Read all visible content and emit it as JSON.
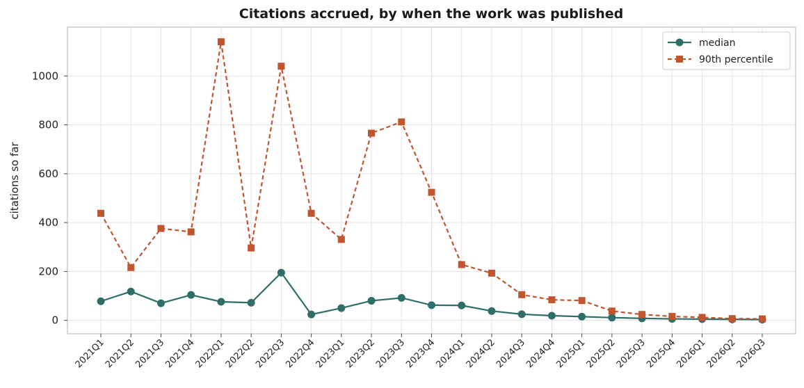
{
  "chart_data": {
    "type": "line",
    "title": "Citations accrued, by when the work was published",
    "xlabel": "",
    "ylabel": "citations so far",
    "categories": [
      "2021Q1",
      "2021Q2",
      "2021Q3",
      "2021Q4",
      "2022Q1",
      "2022Q2",
      "2022Q3",
      "2022Q4",
      "2023Q1",
      "2023Q2",
      "2023Q3",
      "2023Q4",
      "2024Q1",
      "2024Q2",
      "2024Q3",
      "2024Q4",
      "2025Q1",
      "2025Q2",
      "2025Q3",
      "2025Q4",
      "2026Q1",
      "2026Q2",
      "2026Q3"
    ],
    "series": [
      {
        "name": "median",
        "color": "#2e6e68",
        "marker": "circle",
        "linestyle": "solid",
        "values": [
          78,
          118,
          70,
          104,
          76,
          72,
          195,
          24,
          50,
          80,
          92,
          62,
          61,
          38,
          25,
          19,
          15,
          11,
          8,
          6,
          5,
          4,
          3
        ]
      },
      {
        "name": "90th percentile",
        "color": "#c0552f",
        "marker": "square",
        "linestyle": "dashed",
        "values": [
          438,
          216,
          376,
          362,
          1140,
          296,
          1040,
          438,
          331,
          766,
          812,
          524,
          228,
          193,
          105,
          84,
          81,
          38,
          24,
          16,
          12,
          7,
          6
        ]
      }
    ],
    "yticks": [
      0,
      200,
      400,
      600,
      800,
      1000
    ],
    "ylim": [
      -55,
      1200
    ],
    "grid": true,
    "legend": "top-right"
  }
}
